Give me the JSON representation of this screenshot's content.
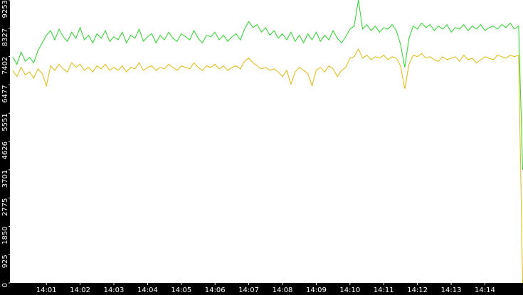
{
  "chart_data": {
    "type": "line",
    "x": [
      0,
      0.125,
      0.25,
      0.375,
      0.5,
      0.625,
      0.75,
      0.875,
      1,
      1.125,
      1.25,
      1.375,
      1.5,
      1.625,
      1.75,
      1.875,
      2,
      2.125,
      2.25,
      2.375,
      2.5,
      2.625,
      2.75,
      2.875,
      3,
      3.125,
      3.25,
      3.375,
      3.5,
      3.625,
      3.75,
      3.875,
      4,
      4.125,
      4.25,
      4.375,
      4.5,
      4.625,
      4.75,
      4.875,
      5,
      5.125,
      5.25,
      5.375,
      5.5,
      5.625,
      5.75,
      5.875,
      6,
      6.125,
      6.25,
      6.375,
      6.5,
      6.625,
      6.75,
      6.875,
      7,
      7.125,
      7.25,
      7.375,
      7.5,
      7.625,
      7.75,
      7.875,
      8,
      8.125,
      8.25,
      8.375,
      8.5,
      8.625,
      8.75,
      8.875,
      9,
      9.125,
      9.25,
      9.375,
      9.5,
      9.625,
      9.75,
      9.875,
      10,
      10.125,
      10.25,
      10.375,
      10.5,
      10.625,
      10.75,
      10.875,
      11,
      11.125,
      11.25,
      11.375,
      11.5,
      11.625,
      11.75,
      11.875,
      12,
      12.125,
      12.25,
      12.375,
      12.5,
      12.625,
      12.75,
      12.875,
      13,
      13.125,
      13.25,
      13.375,
      13.5,
      13.625,
      13.75,
      13.875,
      14,
      14.125,
      14.25,
      14.375,
      14.5,
      14.625,
      14.75,
      14.875,
      15,
      15.12
    ],
    "series": [
      {
        "color": "#22dd22",
        "values": [
          7400,
          7150,
          7550,
          7250,
          7380,
          7200,
          7600,
          7850,
          8100,
          8250,
          7950,
          8300,
          8050,
          7900,
          8200,
          8000,
          8350,
          7950,
          8100,
          7850,
          8150,
          8000,
          8250,
          7900,
          8050,
          7950,
          8200,
          7850,
          8100,
          8000,
          8300,
          7900,
          8050,
          8150,
          7850,
          8100,
          7950,
          8200,
          8000,
          7900,
          8150,
          8050,
          7950,
          8250,
          8000,
          7850,
          8100,
          8050,
          8200,
          7950,
          8100,
          7900,
          8050,
          8150,
          7950,
          8300,
          8550,
          8350,
          8450,
          8200,
          8350,
          8100,
          8250,
          8000,
          8150,
          7950,
          8200,
          7900,
          8100,
          7850,
          8150,
          7950,
          8200,
          7900,
          8100,
          7950,
          8250,
          8000,
          7850,
          8050,
          8300,
          8400,
          9250,
          8300,
          8450,
          8250,
          8400,
          8200,
          8350,
          8300,
          8450,
          8250,
          7800,
          7050,
          8000,
          8400,
          8300,
          8500,
          8350,
          8450,
          8250,
          8400,
          8300,
          8450,
          8200,
          8350,
          8300,
          8450,
          8250,
          8400,
          8300,
          8450,
          8250,
          8350,
          8400,
          8300,
          8450,
          8350,
          8500,
          8300,
          8400,
          3700
        ]
      },
      {
        "color": "#e8b800",
        "values": [
          6950,
          6750,
          7050,
          6800,
          6900,
          6700,
          7000,
          6850,
          6450,
          7100,
          6950,
          7150,
          7000,
          6900,
          7200,
          7050,
          7150,
          6950,
          7050,
          6900,
          7100,
          7000,
          7150,
          6950,
          7050,
          6950,
          7100,
          6900,
          7050,
          7000,
          7200,
          6950,
          7050,
          7100,
          6950,
          7050,
          7000,
          7150,
          7050,
          6950,
          7100,
          7050,
          7000,
          7200,
          7050,
          6950,
          7100,
          7050,
          7150,
          7000,
          7100,
          6950,
          7050,
          7100,
          7000,
          7250,
          7350,
          7200,
          7100,
          7000,
          7050,
          6950,
          7000,
          6900,
          6750,
          6950,
          6500,
          6900,
          7050,
          6950,
          6850,
          6450,
          6950,
          7050,
          6900,
          7100,
          7000,
          6750,
          6950,
          7050,
          7350,
          7400,
          7650,
          7350,
          7450,
          7300,
          7400,
          7350,
          7450,
          7300,
          7400,
          7350,
          7100,
          6350,
          7150,
          7450,
          7400,
          7500,
          7350,
          7400,
          7300,
          7250,
          7400,
          7300,
          7350,
          7400,
          7250,
          7450,
          7300,
          7350,
          7200,
          7300,
          7400,
          7350,
          7300,
          7450,
          7400,
          7350,
          7450,
          7400,
          7450,
          0
        ]
      }
    ],
    "xlim": [
      -0.08,
      15.13
    ],
    "xticks": [
      {
        "value": 1,
        "label": "14:01"
      },
      {
        "value": 2,
        "label": "14:02"
      },
      {
        "value": 3,
        "label": "14:03"
      },
      {
        "value": 4,
        "label": "14:04"
      },
      {
        "value": 5,
        "label": "14:05"
      },
      {
        "value": 6,
        "label": "14:06"
      },
      {
        "value": 7,
        "label": "14:07"
      },
      {
        "value": 8,
        "label": "14:08"
      },
      {
        "value": 9,
        "label": "14:09"
      },
      {
        "value": 10,
        "label": "14:10"
      },
      {
        "value": 11,
        "label": "14:11"
      },
      {
        "value": 12,
        "label": "14:12"
      },
      {
        "value": 13,
        "label": "14:13"
      },
      {
        "value": 14,
        "label": "14:14"
      }
    ],
    "ylim": [
      0,
      9253
    ],
    "yticks": [
      0,
      925,
      1850,
      2775,
      3701,
      4626,
      5551,
      6477,
      7402,
      8327,
      9253
    ]
  }
}
